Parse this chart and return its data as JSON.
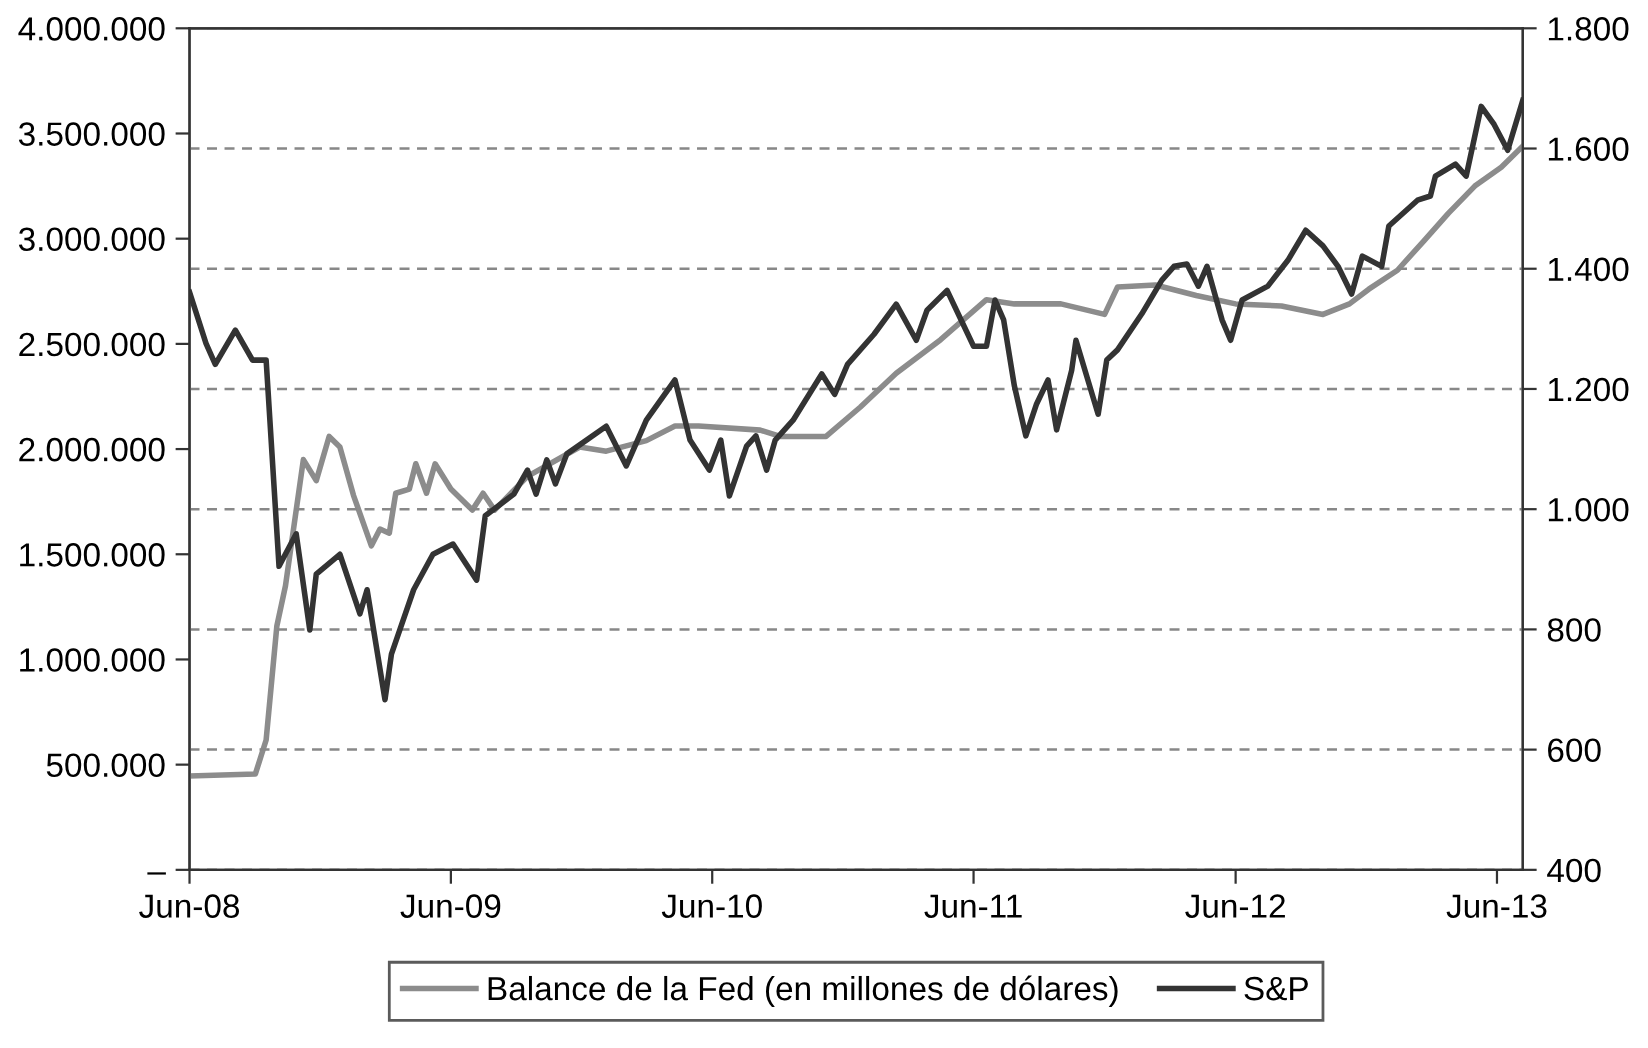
{
  "chart_data": {
    "type": "line",
    "xlim": [
      "2008-06-01",
      "2013-07-07"
    ],
    "xticks": [
      {
        "value": "2008-06-01",
        "label": "Jun-08"
      },
      {
        "value": "2009-06-01",
        "label": "Jun-09"
      },
      {
        "value": "2010-06-01",
        "label": "Jun-10"
      },
      {
        "value": "2011-06-01",
        "label": "Jun-11"
      },
      {
        "value": "2012-06-01",
        "label": "Jun-12"
      },
      {
        "value": "2013-06-01",
        "label": "Jun-13"
      }
    ],
    "ylim": [
      0,
      4000000
    ],
    "yticks": [
      {
        "value": 0,
        "label": "–"
      },
      {
        "value": 500000,
        "label": "500.000"
      },
      {
        "value": 1000000,
        "label": "1.000.000"
      },
      {
        "value": 1500000,
        "label": "1.500.000"
      },
      {
        "value": 2000000,
        "label": "2.000.000"
      },
      {
        "value": 2500000,
        "label": "2.500.000"
      },
      {
        "value": 3000000,
        "label": "3.000.000"
      },
      {
        "value": 3500000,
        "label": "3.500.000"
      },
      {
        "value": 4000000,
        "label": "4.000.000"
      }
    ],
    "y2lim": [
      400,
      1800
    ],
    "y2ticks": [
      400,
      600,
      800,
      {
        "value": 1000,
        "label": "1.000"
      },
      {
        "value": 1200,
        "label": "1.200"
      },
      {
        "value": 1400,
        "label": "1.400"
      },
      {
        "value": 1600,
        "label": "1.600"
      },
      {
        "value": 1800,
        "label": "1.800"
      }
    ],
    "grid": "y2",
    "legend": "bottom",
    "series": [
      {
        "name": "Balance de la Fed (en millones de dólares)",
        "color": "#8c8c8c",
        "axis": "y",
        "x": [
          "2008-06-01",
          "2008-09-01",
          "2008-09-16",
          "2008-10-01",
          "2008-10-13",
          "2008-11-07",
          "2008-11-25",
          "2008-12-13",
          "2008-12-28",
          "2009-01-16",
          "2009-02-10",
          "2009-02-22",
          "2009-03-07",
          "2009-03-16",
          "2009-04-04",
          "2009-04-13",
          "2009-04-28",
          "2009-05-10",
          "2009-06-01",
          "2009-07-01",
          "2009-07-16",
          "2009-08-01",
          "2009-09-16",
          "2009-11-28",
          "2010-01-04",
          "2010-03-01",
          "2010-04-10",
          "2010-05-13",
          "2010-08-07",
          "2010-09-04",
          "2010-11-07",
          "2010-12-25",
          "2011-02-13",
          "2011-04-16",
          "2011-06-19",
          "2011-07-28",
          "2011-10-01",
          "2011-12-01",
          "2011-12-19",
          "2012-02-10",
          "2012-04-07",
          "2012-06-01",
          "2012-08-04",
          "2012-10-01",
          "2012-11-07",
          "2012-12-04",
          "2013-01-13",
          "2013-02-19",
          "2013-03-25",
          "2013-05-01",
          "2013-06-07",
          "2013-07-07"
        ],
        "values": [
          446000,
          456000,
          617000,
          1160000,
          1350000,
          1950000,
          1850000,
          2060000,
          2010000,
          1780000,
          1540000,
          1620000,
          1600000,
          1790000,
          1810000,
          1930000,
          1790000,
          1930000,
          1810000,
          1710000,
          1790000,
          1710000,
          1870000,
          2010000,
          1990000,
          2040000,
          2110000,
          2110000,
          2090000,
          2060000,
          2060000,
          2200000,
          2360000,
          2520000,
          2710000,
          2690000,
          2690000,
          2640000,
          2770000,
          2780000,
          2730000,
          2690000,
          2680000,
          2640000,
          2690000,
          2760000,
          2850000,
          2990000,
          3120000,
          3250000,
          3340000,
          3440000
        ]
      },
      {
        "name": "S&P",
        "color": "#333333",
        "axis": "y2",
        "x": [
          "2008-06-01",
          "2008-06-24",
          "2008-07-07",
          "2008-08-04",
          "2008-08-28",
          "2008-09-16",
          "2008-10-04",
          "2008-10-28",
          "2008-11-16",
          "2008-11-25",
          "2008-12-28",
          "2009-01-25",
          "2009-02-04",
          "2009-03-01",
          "2009-03-10",
          "2009-04-10",
          "2009-05-07",
          "2009-06-04",
          "2009-07-07",
          "2009-07-19",
          "2009-08-28",
          "2009-09-16",
          "2009-09-28",
          "2009-10-13",
          "2009-10-25",
          "2009-11-10",
          "2010-01-04",
          "2010-02-01",
          "2010-03-01",
          "2010-04-10",
          "2010-05-01",
          "2010-05-28",
          "2010-06-13",
          "2010-06-25",
          "2010-07-19",
          "2010-08-01",
          "2010-08-16",
          "2010-08-28",
          "2010-09-22",
          "2010-11-01",
          "2010-11-19",
          "2010-12-07",
          "2011-01-13",
          "2011-02-13",
          "2011-03-13",
          "2011-03-28",
          "2011-04-25",
          "2011-06-01",
          "2011-06-19",
          "2011-07-01",
          "2011-07-13",
          "2011-07-28",
          "2011-08-13",
          "2011-08-28",
          "2011-09-13",
          "2011-09-25",
          "2011-10-16",
          "2011-10-22",
          "2011-11-22",
          "2011-12-04",
          "2011-12-19",
          "2012-01-22",
          "2012-02-19",
          "2012-03-07",
          "2012-03-25",
          "2012-04-10",
          "2012-04-22",
          "2012-05-13",
          "2012-05-25",
          "2012-06-10",
          "2012-07-16",
          "2012-08-13",
          "2012-09-07",
          "2012-10-01",
          "2012-10-22",
          "2012-11-10",
          "2012-11-25",
          "2012-12-22",
          "2013-01-01",
          "2013-02-10",
          "2013-02-28",
          "2013-03-07",
          "2013-04-04",
          "2013-04-19",
          "2013-05-10",
          "2013-05-28",
          "2013-06-16",
          "2013-07-07"
        ],
        "values": [
          1361,
          1276,
          1241,
          1298,
          1248,
          1248,
          905,
          959,
          799,
          892,
          925,
          826,
          866,
          683,
          759,
          866,
          925,
          942,
          882,
          989,
          1025,
          1065,
          1025,
          1082,
          1042,
          1092,
          1138,
          1072,
          1148,
          1215,
          1115,
          1065,
          1115,
          1022,
          1105,
          1122,
          1065,
          1115,
          1148,
          1225,
          1191,
          1241,
          1291,
          1341,
          1281,
          1331,
          1364,
          1271,
          1271,
          1348,
          1315,
          1205,
          1122,
          1175,
          1215,
          1132,
          1231,
          1281,
          1158,
          1248,
          1265,
          1325,
          1381,
          1404,
          1408,
          1371,
          1404,
          1315,
          1281,
          1348,
          1371,
          1414,
          1464,
          1438,
          1404,
          1358,
          1421,
          1404,
          1471,
          1514,
          1521,
          1554,
          1574,
          1554,
          1670,
          1640,
          1597,
          1680
        ]
      }
    ]
  }
}
